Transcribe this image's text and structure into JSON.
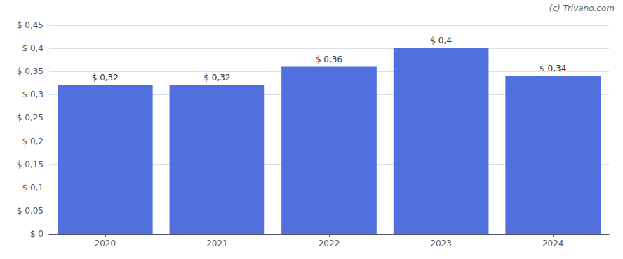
{
  "chart_data": {
    "type": "bar",
    "categories": [
      "2020",
      "2021",
      "2022",
      "2023",
      "2024"
    ],
    "values": [
      0.32,
      0.32,
      0.36,
      0.4,
      0.34
    ],
    "value_labels": [
      "$ 0,32",
      "$ 0,32",
      "$ 0,36",
      "$ 0,4",
      "$ 0,34"
    ],
    "data_labels": true,
    "ylim": [
      0,
      0.45
    ],
    "yticks": [
      {
        "value": 0,
        "label": "$ 0"
      },
      {
        "value": 0.05,
        "label": "$ 0,05"
      },
      {
        "value": 0.1,
        "label": "$ 0,1"
      },
      {
        "value": 0.15,
        "label": "$ 0,15"
      },
      {
        "value": 0.2,
        "label": "$ 0,2"
      },
      {
        "value": 0.25,
        "label": "$ 0,25"
      },
      {
        "value": 0.3,
        "label": "$ 0,3"
      },
      {
        "value": 0.35,
        "label": "$ 0,35"
      },
      {
        "value": 0.4,
        "label": "$ 0,4"
      },
      {
        "value": 0.45,
        "label": "$ 0,45"
      }
    ],
    "grid": true,
    "annotations": [
      "(c) Trivano.com"
    ]
  }
}
